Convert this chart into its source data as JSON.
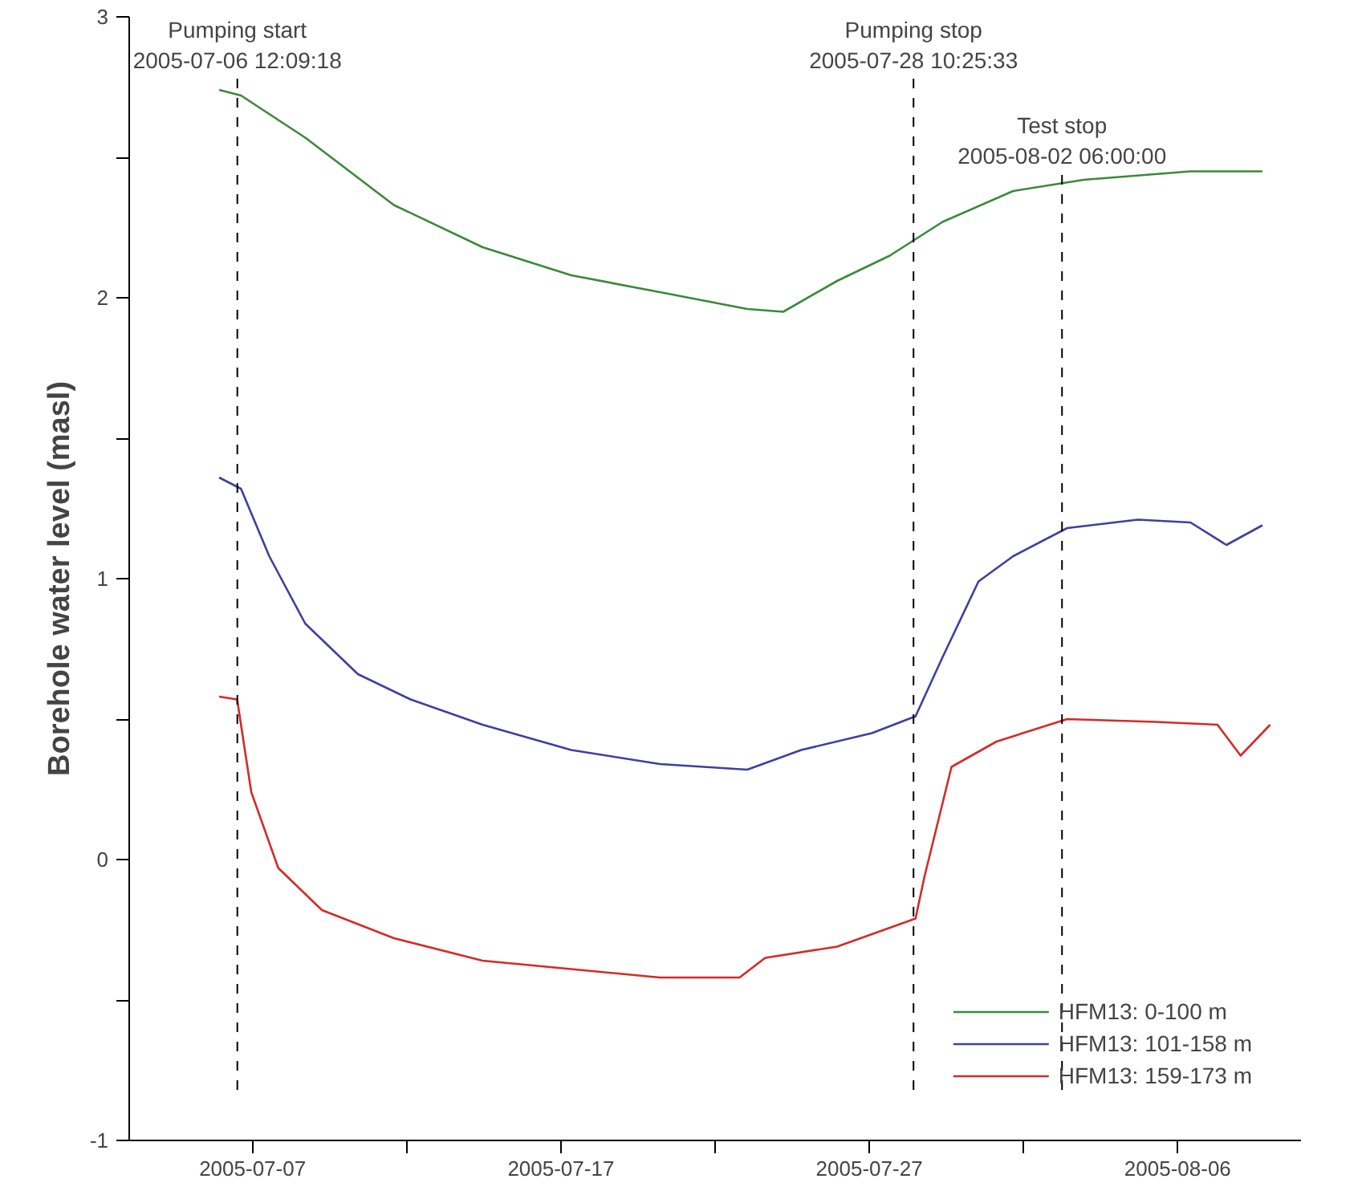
{
  "chart_data": {
    "type": "line",
    "ylabel": "Borehole water level (masl)",
    "xlim": [
      "2005-07-03",
      "2005-08-10"
    ],
    "xticks": [
      "2005-07-07",
      {
        "value": "2005-07-12",
        "label": null
      },
      "2005-07-17",
      {
        "value": "2005-07-22",
        "label": null
      },
      "2005-07-27",
      {
        "value": "2005-08-01",
        "label": null
      },
      "2005-08-06"
    ],
    "ylim": [
      -1,
      3
    ],
    "yticks": [
      -1,
      {
        "value": -0.5,
        "label": null
      },
      0,
      {
        "value": 0.5,
        "label": null
      },
      1,
      {
        "value": 1.5,
        "label": null
      },
      2,
      {
        "value": 2.5,
        "label": null
      },
      3
    ],
    "grid": false,
    "legend": "bottom right",
    "line_style": "solid",
    "marker": "none",
    "series": [
      {
        "name": "HFM13: 0-100 m",
        "color": "#3a8a3a",
        "x": [
          "2005-07-05T22:00",
          "2005-07-06T15:00",
          "2005-07-08T17:00",
          "2005-07-11T14:00",
          "2005-07-14T11:00",
          "2005-07-17T08:00",
          "2005-07-20T05:00",
          "2005-07-23T01:00",
          "2005-07-24T05:00",
          "2005-07-25T23:00",
          "2005-07-27T16:00",
          "2005-07-29T09:00",
          "2005-07-31T16:00",
          "2005-08-02T23:00",
          "2005-08-06T10:00",
          "2005-08-08T18:00"
        ],
        "values": [
          2.74,
          2.72,
          2.57,
          2.33,
          2.18,
          2.08,
          2.02,
          1.96,
          1.95,
          2.06,
          2.15,
          2.27,
          2.38,
          2.42,
          2.45,
          2.45
        ]
      },
      {
        "name": "HFM13: 101-158 m",
        "color": "#3f3f9f",
        "x": [
          "2005-07-05T22:00",
          "2005-07-06T15:00",
          "2005-07-07T13:00",
          "2005-07-08T17:00",
          "2005-07-10T10:00",
          "2005-07-12T03:00",
          "2005-07-14T11:00",
          "2005-07-17T08:00",
          "2005-07-20T05:00",
          "2005-07-23T01:00",
          "2005-07-24T19:00",
          "2005-07-27T02:00",
          "2005-07-28T12:00",
          "2005-07-29T09:00",
          "2005-07-30T13:00",
          "2005-07-31T16:00",
          "2005-08-02T10:00",
          "2005-08-04T17:00",
          "2005-08-06T10:00",
          "2005-08-07T14:00",
          "2005-08-08T18:00"
        ],
        "values": [
          1.36,
          1.32,
          1.08,
          0.84,
          0.66,
          0.57,
          0.48,
          0.39,
          0.34,
          0.32,
          0.39,
          0.45,
          0.51,
          0.72,
          0.99,
          1.08,
          1.18,
          1.21,
          1.2,
          1.12,
          1.19
        ]
      },
      {
        "name": "HFM13: 159-173 m",
        "color": "#d42a2a",
        "x": [
          "2005-07-05T22:00",
          "2005-07-06T12:00",
          "2005-07-06T23:00",
          "2005-07-07T20:00",
          "2005-07-09T06:00",
          "2005-07-11T14:00",
          "2005-07-14T11:00",
          "2005-07-17T08:00",
          "2005-07-20T05:00",
          "2005-07-22T19:00",
          "2005-07-23T15:00",
          "2005-07-25T23:00",
          "2005-07-28T12:00",
          "2005-07-28T19:00",
          "2005-07-29T16:00",
          "2005-07-31T03:00",
          "2005-08-02T10:00",
          "2005-08-05T07:00",
          "2005-08-07T07:00",
          "2005-08-08T01:00",
          "2005-08-09T00:00"
        ],
        "values": [
          0.58,
          0.57,
          0.24,
          -0.03,
          -0.18,
          -0.28,
          -0.36,
          -0.39,
          -0.42,
          -0.42,
          -0.35,
          -0.31,
          -0.21,
          -0.06,
          0.33,
          0.42,
          0.5,
          0.49,
          0.48,
          0.37,
          0.48
        ]
      }
    ],
    "ref_lines": [
      {
        "axis": "x",
        "value": "2005-07-06T12:09:18",
        "label": "Pumping start\n2005-07-06 12:09:18",
        "line_style": "dashed",
        "color": "#000000"
      },
      {
        "axis": "x",
        "value": "2005-07-28T10:25:33",
        "label": "Pumping stop\n2005-07-28 10:25:33",
        "line_style": "dashed",
        "color": "#000000"
      },
      {
        "axis": "x",
        "value": "2005-08-02T06:00:00",
        "label": "Test stop\n2005-08-02 06:00:00",
        "line_style": "dashed",
        "color": "#000000"
      }
    ]
  }
}
